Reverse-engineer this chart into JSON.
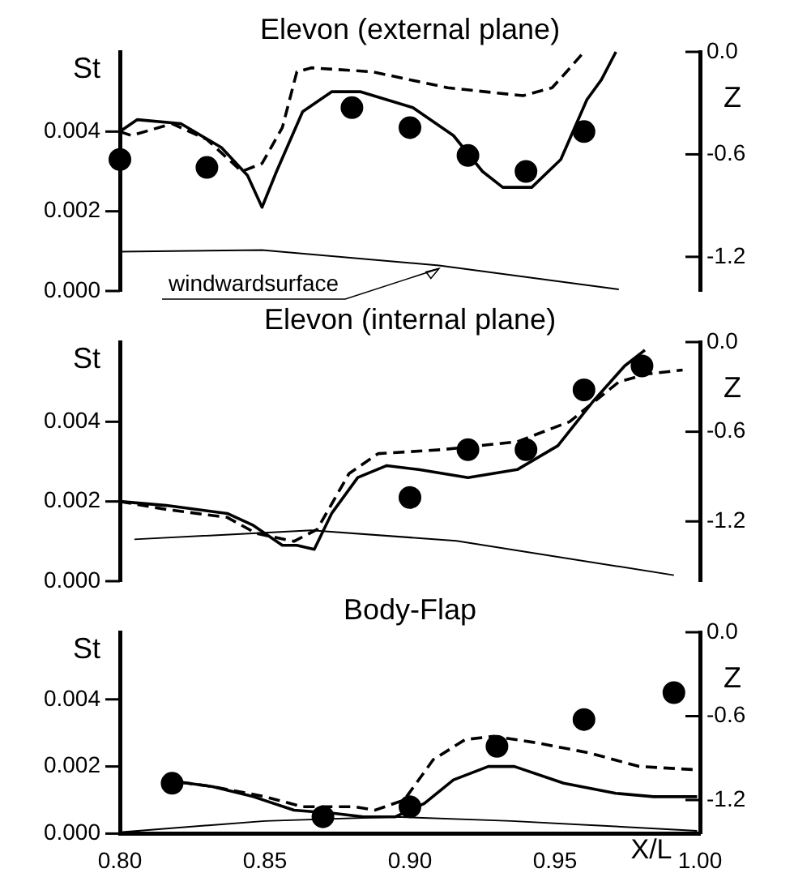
{
  "chart_data": [
    {
      "type": "line",
      "title": "Elevon (external plane)",
      "ylabel": "St",
      "y2label": "Z",
      "xlim": [
        0.8,
        1.0
      ],
      "ylim": [
        0,
        0.006
      ],
      "yticks": [
        {
          "value": 0,
          "label": "0.000"
        },
        {
          "value": 0.002,
          "label": "0.002"
        },
        {
          "value": 0.004,
          "label": "0.004"
        }
      ],
      "y2lim": [
        -1.4,
        0
      ],
      "y2ticks": [
        {
          "value": 0,
          "label": "0.0"
        },
        {
          "value": -0.6,
          "label": "-0.6"
        },
        {
          "value": -1.2,
          "label": "-1.2"
        }
      ],
      "tick_labels": "y",
      "grid": false,
      "legend": false,
      "annotations": [
        "windwardsurface"
      ],
      "series": [
        {
          "type": "scatter",
          "marker": "circle",
          "color": "#000000",
          "x": [
            0.8,
            0.83,
            0.88,
            0.9,
            0.92,
            0.94,
            0.96
          ],
          "values": [
            0.0033,
            0.0031,
            0.0046,
            0.0041,
            0.0034,
            0.003,
            0.004
          ]
        },
        {
          "type": "line",
          "line_style": "solid",
          "marker": "none",
          "color": "#000000",
          "x": [
            0.8,
            0.806,
            0.821,
            0.835,
            0.844,
            0.849,
            0.854,
            0.863,
            0.873,
            0.883,
            0.901,
            0.915,
            0.925,
            0.932,
            0.942,
            0.952,
            0.961,
            0.966,
            0.971
          ],
          "values": [
            0.004,
            0.0043,
            0.0042,
            0.0036,
            0.0029,
            0.0021,
            0.003,
            0.0045,
            0.005,
            0.005,
            0.0046,
            0.0039,
            0.003,
            0.0026,
            0.0026,
            0.0033,
            0.0048,
            0.0053,
            0.006
          ]
        },
        {
          "type": "line",
          "line_style": "dashed",
          "marker": "none",
          "color": "#000000",
          "x": [
            0.8,
            0.804,
            0.818,
            0.83,
            0.842,
            0.849,
            0.856,
            0.861,
            0.866,
            0.887,
            0.913,
            0.939,
            0.949,
            0.954,
            0.96
          ],
          "values": [
            0.004,
            0.0039,
            0.0042,
            0.0038,
            0.003,
            0.0032,
            0.0041,
            0.0055,
            0.0056,
            0.0055,
            0.0051,
            0.0049,
            0.0051,
            0.0055,
            0.006
          ]
        },
        {
          "type": "line",
          "axis": "y2",
          "line_style": "solid",
          "marker": "none",
          "color": "#000000",
          "x": [
            0.8,
            0.849,
            0.91,
            0.972
          ],
          "values": [
            -1.17,
            -1.16,
            -1.25,
            -1.39
          ]
        }
      ]
    },
    {
      "type": "line",
      "title": "Elevon (internal plane)",
      "ylabel": "St",
      "y2label": "Z",
      "xlim": [
        0.8,
        1.0
      ],
      "ylim": [
        0,
        0.006
      ],
      "yticks": [
        {
          "value": 0,
          "label": "0.000"
        },
        {
          "value": 0.002,
          "label": "0.002"
        },
        {
          "value": 0.004,
          "label": "0.004"
        }
      ],
      "y2lim": [
        -1.6,
        0
      ],
      "y2ticks": [
        {
          "value": 0,
          "label": "0.0"
        },
        {
          "value": -0.6,
          "label": "-0.6"
        },
        {
          "value": -1.2,
          "label": "-1.2"
        }
      ],
      "tick_labels": "y",
      "grid": false,
      "legend": false,
      "series": [
        {
          "type": "scatter",
          "marker": "circle",
          "color": "#000000",
          "x": [
            0.9,
            0.92,
            0.94,
            0.96,
            0.98
          ],
          "values": [
            0.0021,
            0.0033,
            0.0033,
            0.0048,
            0.0054
          ]
        },
        {
          "type": "line",
          "line_style": "solid",
          "marker": "none",
          "color": "#000000",
          "x": [
            0.8,
            0.816,
            0.837,
            0.846,
            0.856,
            0.861,
            0.867,
            0.873,
            0.882,
            0.892,
            0.903,
            0.92,
            0.937,
            0.951,
            0.963,
            0.974,
            0.981
          ],
          "values": [
            0.002,
            0.0019,
            0.0017,
            0.0014,
            0.0009,
            0.0009,
            0.0008,
            0.0017,
            0.0026,
            0.0029,
            0.0028,
            0.0026,
            0.0028,
            0.0034,
            0.0045,
            0.0054,
            0.0058
          ]
        },
        {
          "type": "line",
          "line_style": "dashed",
          "marker": "none",
          "color": "#000000",
          "x": [
            0.8,
            0.816,
            0.837,
            0.847,
            0.86,
            0.868,
            0.879,
            0.889,
            0.911,
            0.937,
            0.955,
            0.972,
            0.982,
            0.994
          ],
          "values": [
            0.002,
            0.0018,
            0.0016,
            0.0012,
            0.001,
            0.0013,
            0.0027,
            0.0032,
            0.0033,
            0.0035,
            0.004,
            0.005,
            0.0052,
            0.0053
          ]
        },
        {
          "type": "line",
          "axis": "y2",
          "line_style": "solid",
          "marker": "none",
          "color": "#000000",
          "x": [
            0.805,
            0.866,
            0.916,
            0.991
          ],
          "values": [
            -1.32,
            -1.26,
            -1.33,
            -1.56
          ]
        }
      ]
    },
    {
      "type": "line",
      "title": "Body-Flap",
      "ylabel": "St",
      "y2label": "Z",
      "xlabel": "X/L",
      "xlim": [
        0.8,
        1.0
      ],
      "xticks": [
        {
          "value": 0.8,
          "label": "0.80"
        },
        0.85,
        {
          "value": 0.9,
          "label": "0.90"
        },
        0.95,
        {
          "value": 1.0,
          "label": "1.00"
        }
      ],
      "ylim": [
        0,
        0.006
      ],
      "yticks": [
        {
          "value": 0,
          "label": "0.000"
        },
        {
          "value": 0.002,
          "label": "0.002"
        },
        {
          "value": 0.004,
          "label": "0.004"
        }
      ],
      "y2lim": [
        -1.44,
        0
      ],
      "y2ticks": [
        {
          "value": 0,
          "label": "0.0"
        },
        {
          "value": -0.6,
          "label": "-0.6"
        },
        {
          "value": -1.2,
          "label": "-1.2"
        }
      ],
      "grid": false,
      "legend": false,
      "series": [
        {
          "type": "scatter",
          "marker": "circle",
          "color": "#000000",
          "x": [
            0.818,
            0.87,
            0.9,
            0.93,
            0.96,
            0.991
          ],
          "values": [
            0.0015,
            0.0005,
            0.0008,
            0.0026,
            0.0034,
            0.0042
          ]
        },
        {
          "type": "line",
          "line_style": "solid",
          "marker": "none",
          "color": "#000000",
          "x": [
            0.815,
            0.832,
            0.846,
            0.86,
            0.874,
            0.884,
            0.895,
            0.905,
            0.915,
            0.927,
            0.936,
            0.953,
            0.971,
            0.984,
            0.999
          ],
          "values": [
            0.0016,
            0.0014,
            0.0011,
            0.0007,
            0.0006,
            0.0005,
            0.0005,
            0.0009,
            0.0016,
            0.002,
            0.002,
            0.0015,
            0.0012,
            0.0011,
            0.0011
          ]
        },
        {
          "type": "line",
          "line_style": "dashed",
          "marker": "none",
          "color": "#000000",
          "x": [
            0.815,
            0.832,
            0.85,
            0.863,
            0.881,
            0.888,
            0.898,
            0.908,
            0.919,
            0.929,
            0.944,
            0.962,
            0.979,
            0.999
          ],
          "values": [
            0.0016,
            0.0014,
            0.0011,
            0.0008,
            0.0008,
            0.0007,
            0.001,
            0.0022,
            0.0028,
            0.0029,
            0.0027,
            0.0024,
            0.002,
            0.0019
          ]
        },
        {
          "type": "line",
          "axis": "y2",
          "line_style": "solid",
          "marker": "none",
          "color": "#000000",
          "x": [
            0.8,
            0.85,
            0.895,
            0.935,
            0.999
          ],
          "values": [
            -1.43,
            -1.35,
            -1.32,
            -1.35,
            -1.42
          ]
        }
      ]
    }
  ]
}
